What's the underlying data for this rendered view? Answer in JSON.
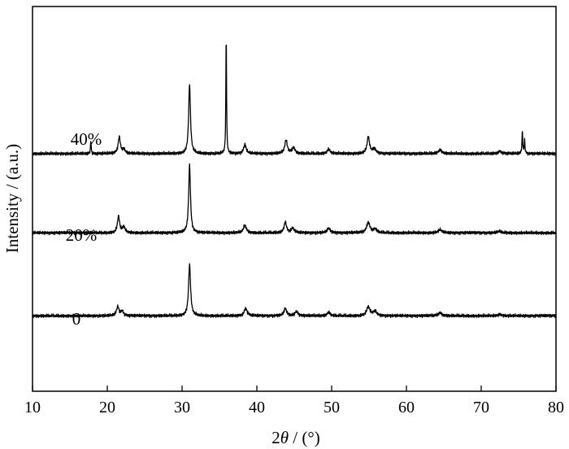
{
  "chart_data": {
    "type": "line",
    "xlabel_prefix": "2",
    "xlabel_symbol": "θ",
    "xlabel_suffix": " / (°)",
    "ylabel": "Intensity / (a.u.)",
    "xlim": [
      10,
      80
    ],
    "x_ticks": [
      10,
      20,
      30,
      40,
      50,
      60,
      70,
      80
    ],
    "grid": false,
    "legend": "none",
    "series": [
      {
        "name": "0",
        "baseline": 0.2,
        "peaks": [
          {
            "x": 21.4,
            "h": 0.12,
            "w": 0.35
          },
          {
            "x": 22.0,
            "h": 0.06,
            "w": 0.35
          },
          {
            "x": 31.0,
            "h": 0.68,
            "w": 0.28
          },
          {
            "x": 38.5,
            "h": 0.1,
            "w": 0.4
          },
          {
            "x": 43.8,
            "h": 0.1,
            "w": 0.35
          },
          {
            "x": 45.3,
            "h": 0.06,
            "w": 0.4
          },
          {
            "x": 49.6,
            "h": 0.05,
            "w": 0.4
          },
          {
            "x": 54.9,
            "h": 0.12,
            "w": 0.45
          },
          {
            "x": 55.8,
            "h": 0.06,
            "w": 0.45
          },
          {
            "x": 64.5,
            "h": 0.04,
            "w": 0.5
          },
          {
            "x": 72.5,
            "h": 0.02,
            "w": 0.5
          }
        ]
      },
      {
        "name": "20%",
        "baseline": 1.3,
        "peaks": [
          {
            "x": 21.5,
            "h": 0.22,
            "w": 0.3
          },
          {
            "x": 22.2,
            "h": 0.08,
            "w": 0.35
          },
          {
            "x": 31.0,
            "h": 0.9,
            "w": 0.25
          },
          {
            "x": 38.4,
            "h": 0.1,
            "w": 0.4
          },
          {
            "x": 43.8,
            "h": 0.14,
            "w": 0.35
          },
          {
            "x": 44.8,
            "h": 0.06,
            "w": 0.4
          },
          {
            "x": 49.6,
            "h": 0.06,
            "w": 0.4
          },
          {
            "x": 54.9,
            "h": 0.14,
            "w": 0.45
          },
          {
            "x": 55.8,
            "h": 0.05,
            "w": 0.45
          },
          {
            "x": 64.5,
            "h": 0.04,
            "w": 0.5
          },
          {
            "x": 72.4,
            "h": 0.02,
            "w": 0.5
          }
        ]
      },
      {
        "name": "40%",
        "baseline": 2.35,
        "peaks": [
          {
            "x": 17.8,
            "h": 0.18,
            "w": 0.09
          },
          {
            "x": 21.6,
            "h": 0.22,
            "w": 0.3
          },
          {
            "x": 22.2,
            "h": 0.06,
            "w": 0.35
          },
          {
            "x": 31.0,
            "h": 0.92,
            "w": 0.25
          },
          {
            "x": 35.9,
            "h": 1.65,
            "w": 0.09
          },
          {
            "x": 38.4,
            "h": 0.12,
            "w": 0.35
          },
          {
            "x": 43.9,
            "h": 0.18,
            "w": 0.35
          },
          {
            "x": 44.9,
            "h": 0.08,
            "w": 0.4
          },
          {
            "x": 49.6,
            "h": 0.06,
            "w": 0.4
          },
          {
            "x": 54.9,
            "h": 0.22,
            "w": 0.35
          },
          {
            "x": 55.7,
            "h": 0.06,
            "w": 0.45
          },
          {
            "x": 64.5,
            "h": 0.05,
            "w": 0.5
          },
          {
            "x": 72.5,
            "h": 0.03,
            "w": 0.5
          },
          {
            "x": 75.5,
            "h": 0.3,
            "w": 0.1
          },
          {
            "x": 75.8,
            "h": 0.18,
            "w": 0.1
          }
        ]
      }
    ],
    "ylim": [
      -0.8,
      4.3
    ]
  }
}
